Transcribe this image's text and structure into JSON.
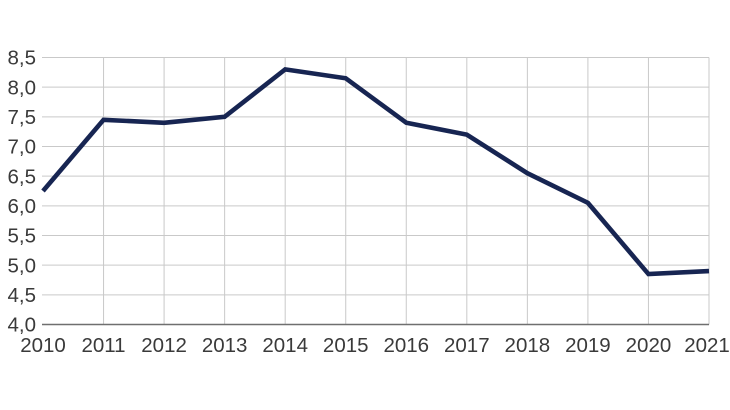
{
  "chart_data": {
    "type": "line",
    "title": "",
    "xlabel": "",
    "ylabel": "",
    "x": [
      "2010",
      "2011",
      "2012",
      "2013",
      "2014",
      "2015",
      "2016",
      "2017",
      "2018",
      "2019",
      "2020",
      "2021"
    ],
    "series": [
      {
        "name": "value",
        "values": [
          6.25,
          7.45,
          7.4,
          7.5,
          8.3,
          8.15,
          7.4,
          7.2,
          6.55,
          6.05,
          4.85,
          4.9
        ]
      }
    ],
    "ylim": [
      4.0,
      8.5
    ],
    "y_ticks": [
      8.5,
      8.0,
      7.5,
      7.0,
      6.5,
      6.0,
      5.5,
      5.0,
      4.5,
      4.0
    ],
    "y_tick_labels": [
      "8,5",
      "8,0",
      "7,5",
      "7,0",
      "6,5",
      "6,0",
      "5,5",
      "5,0",
      "4,5",
      "4,0"
    ],
    "decimal_separator": ",",
    "grid": "horizontal and vertical gridlines on, no vertical line at first year",
    "legend": "none",
    "colors": {
      "line": "#172552",
      "gridline": "#c9c9c9",
      "axis": "#6f6f6f",
      "text": "#3a3a3a",
      "background": "#ffffff"
    }
  }
}
